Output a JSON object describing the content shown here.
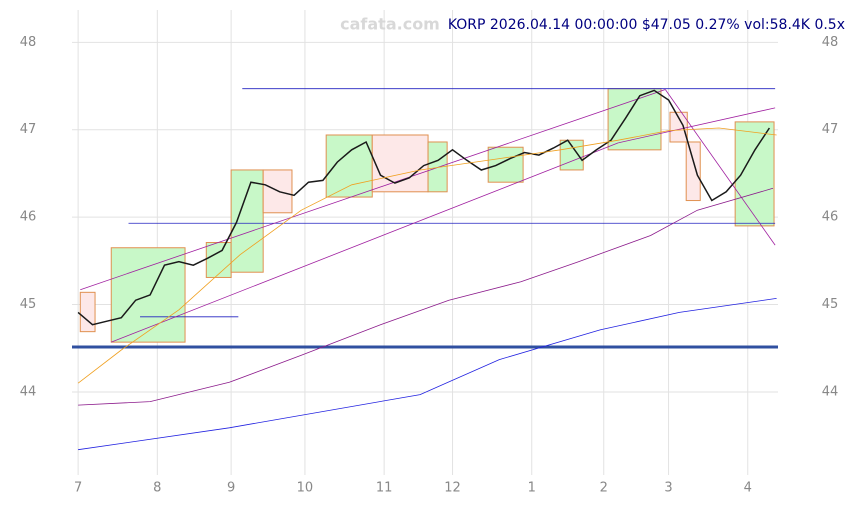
{
  "chart_data": {
    "type": "line",
    "watermark": "cafata.com",
    "title": "KORP 2026.04.14 00:00:00 $47.05 0.27% vol:58.4K 0.5x",
    "xlim": [
      -1.7,
      194.4
    ],
    "ylim": [
      43.05,
      48.37
    ],
    "xticks": [
      {
        "value": 0,
        "label": "7"
      },
      {
        "value": 22,
        "label": "8"
      },
      {
        "value": 42.5,
        "label": "9"
      },
      {
        "value": 63,
        "label": "10"
      },
      {
        "value": 85,
        "label": "11"
      },
      {
        "value": 104,
        "label": "12"
      },
      {
        "value": 126,
        "label": "1"
      },
      {
        "value": 146,
        "label": "2"
      },
      {
        "value": 164,
        "label": "3"
      },
      {
        "value": 186,
        "label": "4"
      }
    ],
    "yticks": [
      44,
      45,
      46,
      47,
      48
    ],
    "grid": true,
    "series": [
      {
        "color": "#1a1a1a",
        "x": [
          0,
          4,
          8,
          12,
          16,
          20,
          24,
          28,
          32,
          36,
          40,
          44,
          48,
          52,
          56,
          60,
          64,
          68,
          72,
          76,
          80,
          84,
          88,
          92,
          96,
          100,
          104,
          108,
          112,
          116,
          120,
          124,
          128,
          132,
          136,
          140,
          144,
          148,
          152,
          156,
          160,
          164,
          168,
          172,
          176,
          180,
          184,
          188,
          192
        ],
        "values": [
          44.91,
          44.77,
          44.81,
          44.85,
          45.05,
          45.11,
          45.45,
          45.49,
          45.45,
          45.53,
          45.62,
          45.94,
          46.4,
          46.37,
          46.29,
          46.25,
          46.4,
          46.42,
          46.63,
          46.77,
          46.86,
          46.48,
          46.39,
          46.45,
          46.59,
          46.65,
          46.77,
          46.65,
          46.54,
          46.59,
          46.67,
          46.74,
          46.71,
          46.79,
          46.88,
          46.65,
          46.77,
          46.88,
          47.13,
          47.39,
          47.45,
          47.34,
          47.05,
          46.48,
          46.19,
          46.29,
          46.48,
          46.77,
          47.02
        ]
      },
      {
        "color": "#f0a020",
        "x": [
          0,
          12,
          28,
          45,
          62,
          76,
          95,
          117,
          134,
          150,
          164,
          178,
          194
        ],
        "values": [
          44.1,
          44.48,
          44.94,
          45.57,
          46.08,
          46.37,
          46.54,
          46.67,
          46.77,
          46.88,
          46.99,
          47.02,
          46.94
        ]
      },
      {
        "color": "#8b1a8b",
        "x": [
          0,
          20,
          42,
          62,
          84,
          103,
          123,
          139,
          159,
          172,
          193
        ],
        "values": [
          43.85,
          43.89,
          44.11,
          44.42,
          44.77,
          45.05,
          45.26,
          45.49,
          45.79,
          46.08,
          46.33
        ]
      },
      {
        "color": "#2020e0",
        "x": [
          0,
          42,
          95,
          117,
          145,
          167,
          194
        ],
        "values": [
          43.34,
          43.59,
          43.97,
          44.37,
          44.71,
          44.91,
          45.07
        ]
      }
    ],
    "boxes": [
      {
        "x": [
          0.6,
          4.7
        ],
        "y": [
          44.69,
          45.14
        ],
        "color": "#fde8e8"
      },
      {
        "x": [
          9.2,
          29.7
        ],
        "y": [
          44.57,
          45.65
        ],
        "color": "#c8f8c8"
      },
      {
        "x": [
          35.6,
          42.5
        ],
        "y": [
          45.31,
          45.71
        ],
        "color": "#c8f8c8"
      },
      {
        "x": [
          42.5,
          51.4
        ],
        "y": [
          45.37,
          46.54
        ],
        "color": "#c8f8c8"
      },
      {
        "x": [
          51.4,
          59.4
        ],
        "y": [
          46.05,
          46.54
        ],
        "color": "#fde8e8"
      },
      {
        "x": [
          68.9,
          81.7
        ],
        "y": [
          46.23,
          46.94
        ],
        "color": "#c8f8c8"
      },
      {
        "x": [
          81.7,
          97.2
        ],
        "y": [
          46.29,
          46.94
        ],
        "color": "#fde8e8"
      },
      {
        "x": [
          97.2,
          102.5
        ],
        "y": [
          46.29,
          46.86
        ],
        "color": "#c8f8c8"
      },
      {
        "x": [
          113.9,
          123.6
        ],
        "y": [
          46.4,
          46.8
        ],
        "color": "#c8f8c8"
      },
      {
        "x": [
          133.9,
          140.3
        ],
        "y": [
          46.54,
          46.88
        ],
        "color": "#c8f8c8"
      },
      {
        "x": [
          147.2,
          161.9
        ],
        "y": [
          46.77,
          47.47
        ],
        "color": "#c8f8c8"
      },
      {
        "x": [
          164.4,
          169.2
        ],
        "y": [
          46.86,
          47.2
        ],
        "color": "#fde8e8"
      },
      {
        "x": [
          168.9,
          172.8
        ],
        "y": [
          46.19,
          46.86
        ],
        "color": "#fde8e8"
      },
      {
        "x": [
          182.5,
          193.3
        ],
        "y": [
          45.9,
          47.09
        ],
        "color": "#c8f8c8"
      }
    ],
    "segments": [
      {
        "x": [
          45.6,
          193.6
        ],
        "y": [
          47.47,
          47.47
        ],
        "color": "#2020c0"
      },
      {
        "x": [
          14,
          193.6
        ],
        "y": [
          45.93,
          45.93
        ],
        "color": "#2020c0"
      },
      {
        "x": [
          17.2,
          44.5
        ],
        "y": [
          44.86,
          44.86
        ],
        "color": "#2020c0"
      },
      {
        "x": [
          0.6,
          163.1
        ],
        "y": [
          45.17,
          47.46
        ],
        "color": "#a020a0"
      },
      {
        "x": [
          163.1,
          193.6
        ],
        "y": [
          47.46,
          45.68
        ],
        "color": "#a020a0"
      },
      {
        "x": [
          9.2,
          150
        ],
        "y": [
          44.57,
          46.85
        ],
        "color": "#a020a0"
      },
      {
        "x": [
          150,
          193.6
        ],
        "y": [
          46.85,
          47.25
        ],
        "color": "#a020a0"
      }
    ]
  }
}
